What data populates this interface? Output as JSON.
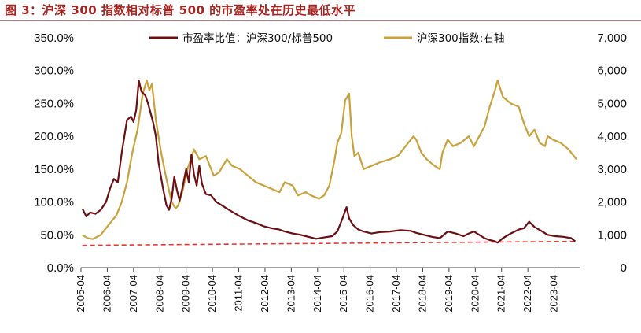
{
  "figure_title": "图 3：沪深 300 指数相对标普 500 的市盈率处在历史最低水平",
  "chart_data": {
    "type": "line",
    "title": "",
    "legend": {
      "placement": "top",
      "entries": [
        {
          "label": "市盈率比值：沪深300/标普500",
          "color": "#6b0f12"
        },
        {
          "label": "沪深300指数:右轴",
          "color": "#c9a13b"
        }
      ]
    },
    "x_ticks": [
      "2005-04",
      "2006-04",
      "2007-04",
      "2008-04",
      "2009-04",
      "2010-04",
      "2011-04",
      "2012-04",
      "2013-04",
      "2014-04",
      "2015-04",
      "2016-04",
      "2017-04",
      "2018-04",
      "2019-04",
      "2020-04",
      "2021-04",
      "2022-04",
      "2023-04"
    ],
    "x_range": [
      2005.25,
      2024.25
    ],
    "y_left": {
      "ticks": [
        "0.0%",
        "50.0%",
        "100.0%",
        "150.0%",
        "200.0%",
        "250.0%",
        "300.0%",
        "350.0%"
      ],
      "range": [
        0,
        350
      ]
    },
    "y_right": {
      "ticks": [
        "0",
        "1,000",
        "2,000",
        "3,000",
        "4,000",
        "5,000",
        "6,000",
        "7,000"
      ],
      "range": [
        0,
        7000
      ]
    },
    "grid": false,
    "series": [
      {
        "name": "市盈率比值：沪深300/标普500",
        "axis": "left",
        "color": "#6b0f12",
        "x": [
          2005.3,
          2005.45,
          2005.6,
          2005.8,
          2006.0,
          2006.2,
          2006.35,
          2006.5,
          2006.65,
          2006.8,
          2007.0,
          2007.15,
          2007.25,
          2007.35,
          2007.45,
          2007.55,
          2007.7,
          2007.8,
          2007.9,
          2008.0,
          2008.1,
          2008.2,
          2008.35,
          2008.5,
          2008.6,
          2008.7,
          2008.8,
          2008.9,
          2009.0,
          2009.1,
          2009.25,
          2009.35,
          2009.45,
          2009.55,
          2009.65,
          2009.75,
          2009.85,
          2010.0,
          2010.2,
          2010.4,
          2010.6,
          2010.8,
          2011.0,
          2011.3,
          2011.6,
          2011.9,
          2012.2,
          2012.5,
          2012.8,
          2013.0,
          2013.3,
          2013.6,
          2013.9,
          2014.2,
          2014.5,
          2014.8,
          2015.0,
          2015.2,
          2015.35,
          2015.45,
          2015.6,
          2015.8,
          2016.0,
          2016.3,
          2016.6,
          2017.0,
          2017.4,
          2017.8,
          2018.0,
          2018.3,
          2018.6,
          2018.9,
          2019.2,
          2019.5,
          2019.8,
          2020.0,
          2020.2,
          2020.4,
          2020.6,
          2020.8,
          2021.0,
          2021.1,
          2021.3,
          2021.6,
          2021.9,
          2022.1,
          2022.3,
          2022.5,
          2022.8,
          2023.0,
          2023.3,
          2023.6,
          2023.9,
          2024.05
        ],
        "y": [
          90,
          78,
          84,
          82,
          88,
          100,
          120,
          135,
          130,
          175,
          225,
          230,
          222,
          240,
          285,
          268,
          262,
          250,
          235,
          220,
          200,
          160,
          125,
          95,
          88,
          105,
          138,
          118,
          102,
          120,
          150,
          130,
          172,
          142,
          125,
          155,
          128,
          112,
          110,
          100,
          95,
          90,
          85,
          78,
          72,
          68,
          63,
          60,
          58,
          55,
          52,
          50,
          47,
          44,
          46,
          48,
          55,
          75,
          92,
          75,
          65,
          58,
          55,
          52,
          54,
          55,
          57,
          56,
          53,
          50,
          47,
          45,
          55,
          52,
          48,
          52,
          55,
          50,
          45,
          42,
          40,
          38,
          45,
          52,
          58,
          60,
          70,
          62,
          55,
          50,
          48,
          47,
          45,
          40
        ]
      },
      {
        "name": "沪深300指数:右轴",
        "axis": "right",
        "color": "#c9a13b",
        "x": [
          2005.3,
          2005.5,
          2005.7,
          2006.0,
          2006.3,
          2006.6,
          2006.8,
          2007.0,
          2007.2,
          2007.4,
          2007.6,
          2007.75,
          2007.85,
          2007.95,
          2008.1,
          2008.3,
          2008.5,
          2008.7,
          2008.85,
          2008.95,
          2009.1,
          2009.3,
          2009.55,
          2009.75,
          2010.0,
          2010.3,
          2010.5,
          2010.8,
          2011.0,
          2011.3,
          2011.6,
          2011.9,
          2012.2,
          2012.5,
          2012.8,
          2013.0,
          2013.3,
          2013.5,
          2013.8,
          2014.0,
          2014.3,
          2014.5,
          2014.7,
          2014.9,
          2015.0,
          2015.15,
          2015.3,
          2015.45,
          2015.55,
          2015.65,
          2015.8,
          2016.0,
          2016.3,
          2016.6,
          2017.0,
          2017.3,
          2017.6,
          2017.9,
          2018.0,
          2018.2,
          2018.4,
          2018.7,
          2018.9,
          2019.0,
          2019.2,
          2019.4,
          2019.7,
          2020.0,
          2020.2,
          2020.4,
          2020.6,
          2020.8,
          2021.0,
          2021.1,
          2021.3,
          2021.6,
          2021.9,
          2022.1,
          2022.3,
          2022.5,
          2022.7,
          2022.9,
          2023.0,
          2023.2,
          2023.5,
          2023.8,
          2024.0,
          2024.1
        ],
        "y": [
          1000,
          900,
          870,
          1000,
          1300,
          1600,
          2000,
          2600,
          3500,
          4200,
          5300,
          5700,
          5400,
          5600,
          4500,
          3500,
          2700,
          2000,
          1800,
          1900,
          2300,
          3000,
          3600,
          3300,
          3400,
          2800,
          2900,
          3300,
          3100,
          3000,
          2800,
          2600,
          2500,
          2400,
          2300,
          2600,
          2500,
          2200,
          2300,
          2200,
          2100,
          2200,
          2500,
          3300,
          3800,
          4100,
          5100,
          5300,
          4000,
          3400,
          3500,
          3000,
          3100,
          3200,
          3300,
          3400,
          3700,
          4000,
          3900,
          3500,
          3300,
          3100,
          3000,
          3500,
          3900,
          3700,
          3800,
          4000,
          3700,
          4000,
          4300,
          4900,
          5400,
          5700,
          5200,
          5000,
          4900,
          4400,
          4000,
          4200,
          3800,
          3700,
          4000,
          3900,
          3800,
          3600,
          3400,
          3300
        ]
      }
    ],
    "reference_line": {
      "axis": "left",
      "from": [
        2005.3,
        34
      ],
      "to": [
        2024.1,
        40
      ],
      "style": "dashed",
      "color": "#e53935"
    }
  }
}
